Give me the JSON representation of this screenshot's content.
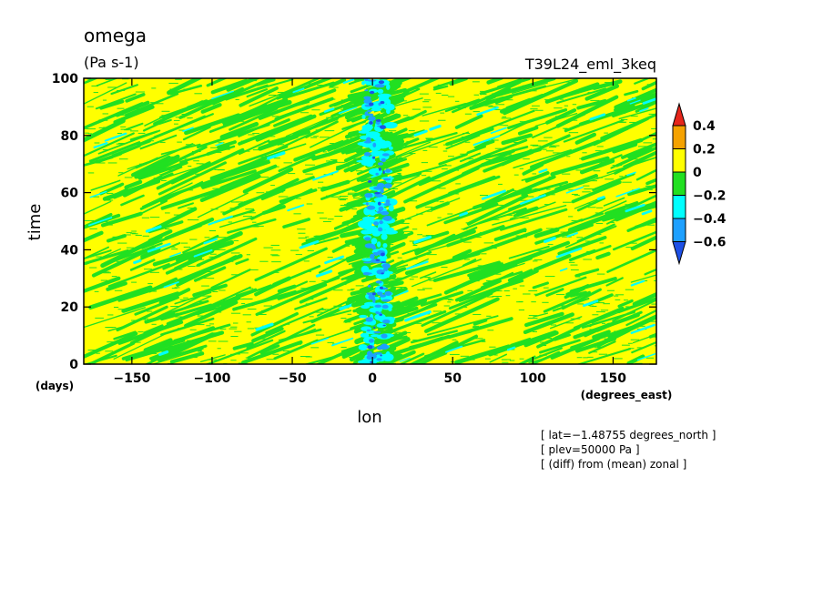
{
  "chart_data": {
    "type": "heatmap",
    "title": "omega",
    "units": "(Pa s-1)",
    "experiment": "T39L24_eml_3keq",
    "xlabel": "lon",
    "ylabel": "time",
    "x_units": "(degrees_east)",
    "y_units": "(days)",
    "xlim": [
      -180,
      177
    ],
    "ylim": [
      0,
      100
    ],
    "x_ticks": [
      -150,
      -100,
      -50,
      0,
      50,
      100,
      150
    ],
    "y_ticks": [
      0,
      20,
      40,
      60,
      80,
      100
    ],
    "x_tick_labels": [
      "−150",
      "−100",
      "−50",
      "0",
      "50",
      "100",
      "150"
    ],
    "y_tick_labels": [
      "0",
      "20",
      "40",
      "60",
      "80",
      "100"
    ],
    "colorbar": {
      "levels": [
        0.4,
        0.2,
        0,
        -0.2,
        -0.4,
        -0.6
      ],
      "labels": [
        "0.4",
        "0.2",
        "0",
        "−0.2",
        "−0.4",
        "−0.6"
      ],
      "colors": [
        "#e6261b",
        "#f5a200",
        "#ffff00",
        "#21e021",
        "#00ffff",
        "#1ea0ff",
        "#1e50e6"
      ]
    },
    "dominant_value_range": [
      0,
      0.2
    ],
    "notes": [
      "[ lat=−1.48755 degrees_north ]",
      "[ plev=50000 Pa ]",
      "[ (diff) from (mean) zonal ]"
    ]
  }
}
